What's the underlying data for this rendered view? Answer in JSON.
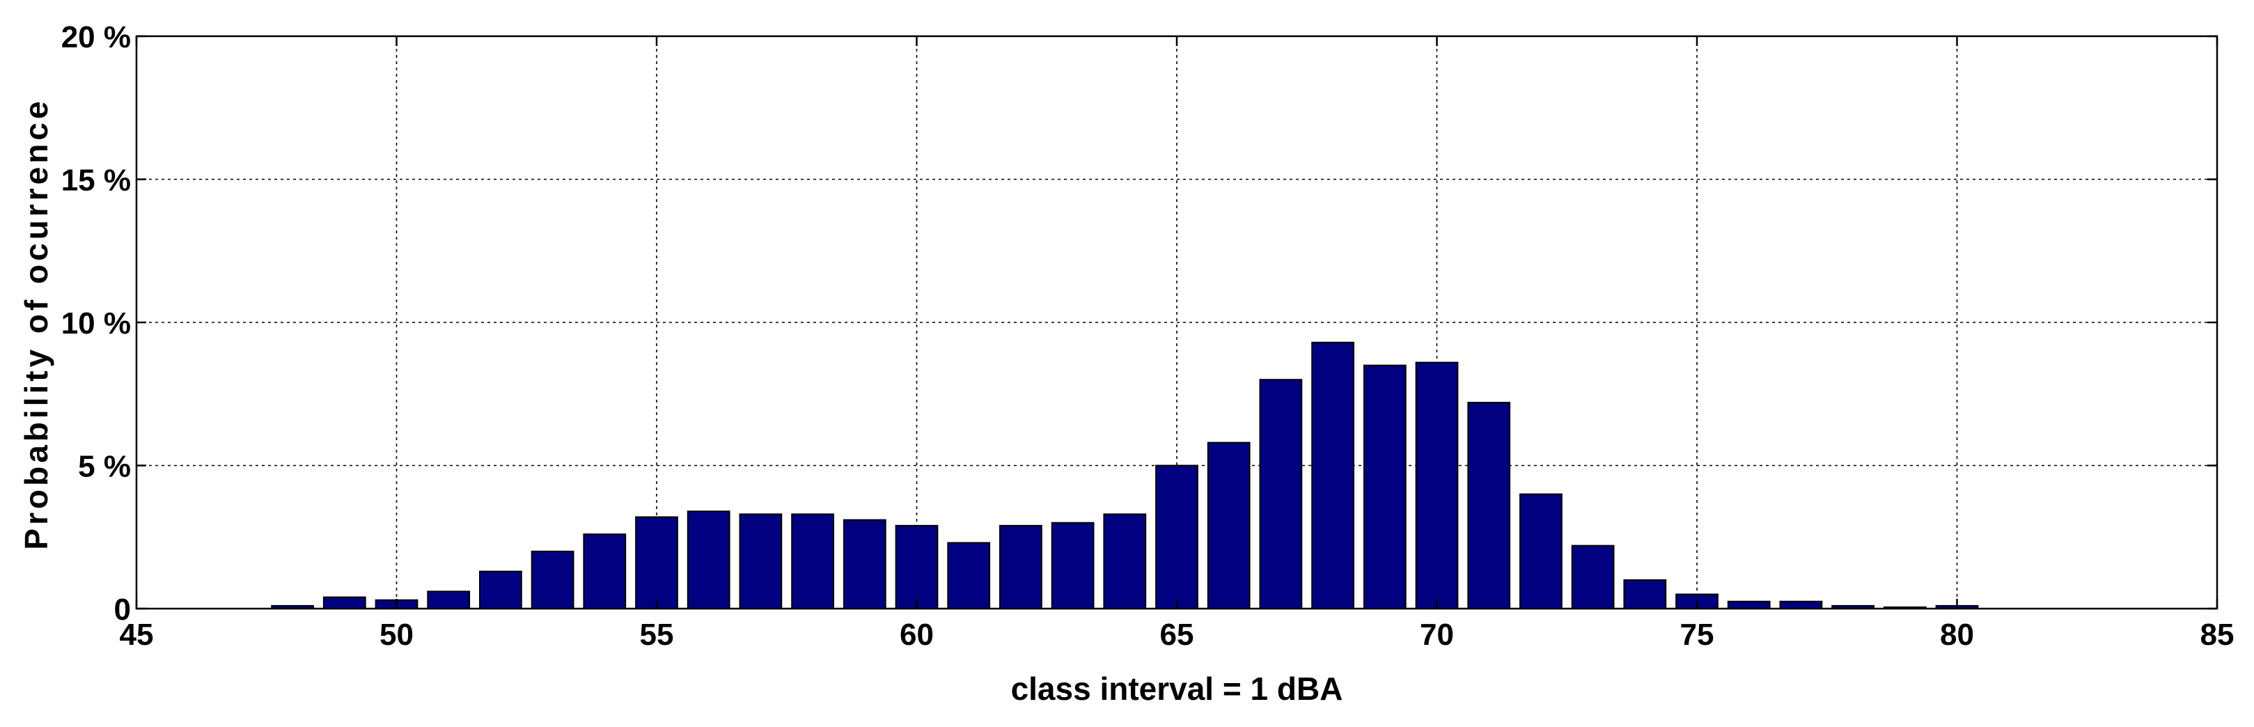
{
  "chart_data": {
    "type": "bar",
    "title": "",
    "xlabel": "class interval = 1 dBA",
    "ylabel": "Probability of ocurrence",
    "xlim": [
      45,
      85
    ],
    "ylim": [
      0,
      20
    ],
    "x_ticks": [
      "45",
      "50",
      "55",
      "60",
      "65",
      "70",
      "75",
      "80",
      "85"
    ],
    "y_ticks": [
      "0",
      "5 %",
      "10 %",
      "15 %",
      "20 %"
    ],
    "grid": true,
    "bar_color": "#000080",
    "x": [
      48,
      49,
      50,
      51,
      52,
      53,
      54,
      55,
      56,
      57,
      58,
      59,
      60,
      61,
      62,
      63,
      64,
      65,
      66,
      67,
      68,
      69,
      70,
      71,
      72,
      73,
      74,
      75,
      76,
      77,
      78,
      79,
      80
    ],
    "values": [
      0.1,
      0.4,
      0.3,
      0.6,
      1.3,
      2.0,
      2.6,
      3.2,
      3.4,
      3.3,
      3.3,
      3.1,
      2.9,
      2.3,
      2.9,
      3.0,
      3.3,
      5.0,
      5.8,
      8.0,
      9.3,
      8.5,
      8.6,
      7.2,
      4.0,
      2.2,
      1.0,
      0.5,
      0.25,
      0.25,
      0.1,
      0.05,
      0.1
    ]
  }
}
